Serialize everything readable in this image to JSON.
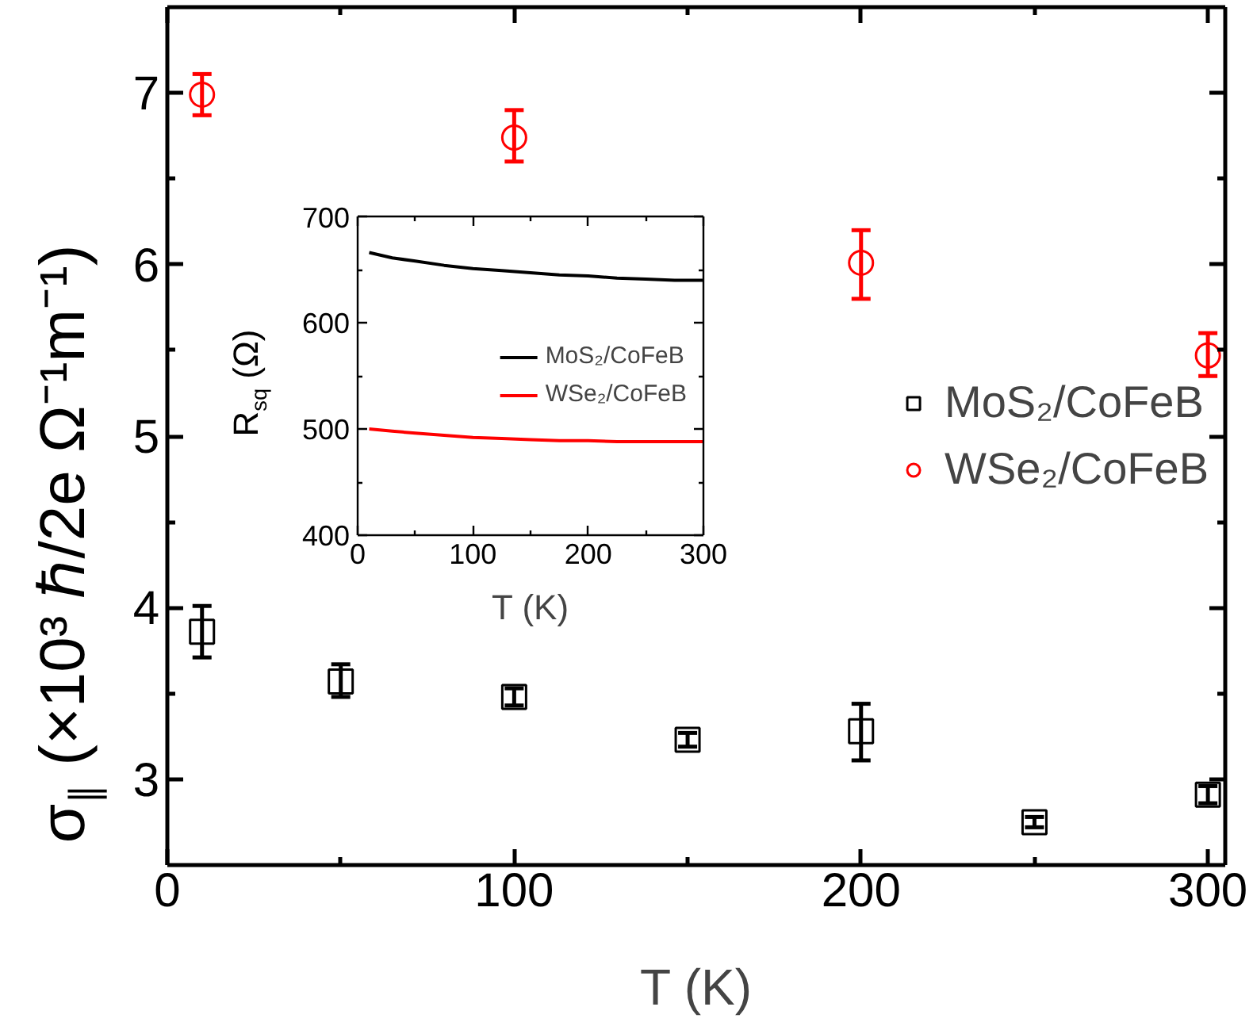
{
  "chart_data": [
    {
      "type": "scatter",
      "xlabel": "T (K)",
      "ylabel": "σ$_{∥}$ (×10³ ℏ/2e Ω⁻¹m⁻¹)",
      "xlim": [
        0,
        305
      ],
      "xticks": [
        0,
        100,
        200,
        300
      ],
      "ylim": [
        2.5,
        7.5
      ],
      "yticks": [
        3,
        4,
        5,
        6,
        7
      ],
      "legend": "right",
      "series": [
        {
          "name": "MoS₂/CoFeB",
          "color": "#000000",
          "marker": "square",
          "x": [
            10,
            50,
            100,
            150,
            200,
            250,
            300
          ],
          "values": [
            3.86,
            3.57,
            3.48,
            3.23,
            3.28,
            2.75,
            2.91
          ],
          "errors": [
            [
              3.71,
              4.01
            ],
            [
              3.48,
              3.67
            ],
            [
              3.43,
              3.53
            ],
            [
              3.19,
              3.27
            ],
            [
              3.11,
              3.44
            ],
            [
              2.72,
              2.78
            ],
            [
              2.86,
              2.96
            ]
          ]
        },
        {
          "name": "WSe₂/CoFeB",
          "color": "#ff0000",
          "marker": "circle",
          "x": [
            10,
            100,
            200,
            300
          ],
          "values": [
            6.99,
            6.74,
            6.01,
            5.47
          ],
          "errors": [
            [
              6.87,
              7.11
            ],
            [
              6.6,
              6.9
            ],
            [
              5.8,
              6.2
            ],
            [
              5.35,
              5.6
            ]
          ]
        }
      ]
    },
    {
      "type": "line",
      "xlabel": "T (K)",
      "ylabel": "R$_{sq}$ (Ω)",
      "xlim": [
        0,
        300
      ],
      "xticks": [
        0,
        100,
        200,
        300
      ],
      "ylim": [
        400,
        700
      ],
      "yticks": [
        400,
        500,
        600,
        700
      ],
      "legend": "right",
      "series": [
        {
          "name": "MoS₂/CoFeB",
          "color": "#000000",
          "x": [
            10,
            30,
            50,
            75,
            100,
            125,
            150,
            175,
            200,
            225,
            250,
            275,
            300
          ],
          "values": [
            666,
            661,
            658,
            654,
            651,
            649,
            647,
            645,
            644,
            642,
            641,
            640,
            640
          ]
        },
        {
          "name": "WSe₂/CoFeB",
          "color": "#ff0000",
          "x": [
            10,
            30,
            50,
            75,
            100,
            125,
            150,
            175,
            200,
            225,
            250,
            275,
            300
          ],
          "values": [
            500,
            498,
            496,
            494,
            492,
            491,
            490,
            489,
            489,
            488,
            488,
            488,
            488
          ]
        }
      ]
    }
  ]
}
